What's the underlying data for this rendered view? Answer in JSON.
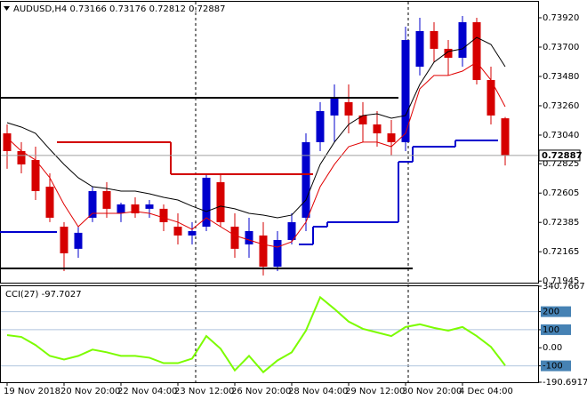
{
  "chart_data": [
    {
      "type": "candlestick",
      "title": "AUDUSD,H4",
      "categories": [
        "19 Nov 2018",
        null,
        null,
        null,
        "20 Nov 20:00",
        null,
        null,
        null,
        "22 Nov 04:00",
        null,
        null,
        null,
        "23 Nov 12:00",
        null,
        null,
        null,
        "26 Nov 20:00",
        null,
        null,
        null,
        "28 Nov 04:00",
        null,
        null,
        null,
        "29 Nov 12:00",
        null,
        null,
        null,
        "30 Nov 20:00",
        null,
        null,
        null,
        "4 Dec 04:00",
        null,
        null,
        null
      ],
      "open": [
        0.73053,
        0.7292,
        0.72853,
        0.72653,
        0.72353,
        0.72187,
        0.7242,
        0.7262,
        0.72453,
        0.7252,
        0.72487,
        0.72487,
        0.72353,
        0.72287,
        0.72353,
        0.72687,
        0.72353,
        0.7222,
        0.72287,
        0.72053,
        0.72253,
        0.7242,
        0.72987,
        0.73187,
        0.73287,
        0.73187,
        0.7312,
        0.73053,
        0.72987,
        0.73553,
        0.7382,
        0.73687,
        0.7362,
        0.73887,
        0.73453,
        0.73166
      ],
      "high": [
        0.7312,
        0.72987,
        0.72953,
        0.72753,
        0.72387,
        0.72353,
        0.72653,
        0.72687,
        0.72533,
        0.72573,
        0.72553,
        0.7252,
        0.72453,
        0.72387,
        0.72753,
        0.72753,
        0.72453,
        0.7242,
        0.72387,
        0.7232,
        0.72453,
        0.73053,
        0.73287,
        0.7342,
        0.7342,
        0.73287,
        0.7322,
        0.73153,
        0.73853,
        0.7392,
        0.73887,
        0.73753,
        0.73933,
        0.7392,
        0.73553,
        0.73176
      ],
      "low": [
        0.72787,
        0.72753,
        0.72553,
        0.72387,
        0.7202,
        0.7212,
        0.72387,
        0.7242,
        0.72387,
        0.7242,
        0.7242,
        0.7232,
        0.7222,
        0.7222,
        0.7232,
        0.72353,
        0.7212,
        0.7212,
        0.71987,
        0.7202,
        0.7222,
        0.7232,
        0.7292,
        0.72987,
        0.73053,
        0.72987,
        0.72953,
        0.72887,
        0.7292,
        0.73487,
        0.73587,
        0.73487,
        0.73553,
        0.7342,
        0.7312,
        0.72812
      ],
      "close": [
        0.7292,
        0.7282,
        0.7262,
        0.7242,
        0.72153,
        0.72307,
        0.7262,
        0.72487,
        0.7252,
        0.72453,
        0.7252,
        0.72387,
        0.72287,
        0.7232,
        0.7272,
        0.72387,
        0.72187,
        0.7232,
        0.72053,
        0.72253,
        0.72387,
        0.72987,
        0.7322,
        0.7332,
        0.73187,
        0.7312,
        0.73053,
        0.72987,
        0.73753,
        0.7382,
        0.73687,
        0.7362,
        0.73887,
        0.73453,
        0.73187,
        0.72887
      ],
      "up_color": "#0000cd",
      "down_color": "#d60000",
      "series": [
        {
          "color": "#000000",
          "width": 1,
          "step": false,
          "values": [
            0.73133,
            0.731,
            0.73053,
            0.72933,
            0.7282,
            0.7272,
            0.72653,
            0.7264,
            0.7262,
            0.7262,
            0.726,
            0.72573,
            0.72553,
            0.72507,
            0.72467,
            0.72507,
            0.72487,
            0.72453,
            0.7244,
            0.7242,
            0.7244,
            0.72553,
            0.7282,
            0.72987,
            0.7312,
            0.73187,
            0.732,
            0.73167,
            0.73187,
            0.7342,
            0.73587,
            0.73667,
            0.73687,
            0.73773,
            0.7372,
            0.73553
          ]
        },
        {
          "color": "#e00000",
          "width": 1,
          "step": false,
          "values": [
            0.7302,
            0.7292,
            0.72853,
            0.7272,
            0.7252,
            0.72353,
            0.72453,
            0.72453,
            0.72453,
            0.72467,
            0.72453,
            0.7242,
            0.72387,
            0.72333,
            0.7242,
            0.72353,
            0.72287,
            0.72253,
            0.7222,
            0.722,
            0.7224,
            0.72387,
            0.72653,
            0.7282,
            0.72953,
            0.72987,
            0.72987,
            0.72953,
            0.73053,
            0.73387,
            0.73487,
            0.73487,
            0.7352,
            0.73587,
            0.73453,
            0.73253
          ]
        },
        {
          "color": "#0000cd",
          "width": 2,
          "step": true,
          "values": [
            0.72313,
            0.72313,
            0.72313,
            0.72313,
            null,
            null,
            null,
            null,
            null,
            null,
            null,
            null,
            null,
            null,
            null,
            null,
            null,
            null,
            null,
            null,
            null,
            0.7222,
            0.72353,
            0.72387,
            0.72387,
            0.72387,
            0.72387,
            0.72387,
            0.7284,
            0.72953,
            0.72953,
            0.72953,
            0.73,
            0.73,
            0.73,
            null
          ]
        },
        {
          "color": "#d00000",
          "width": 2,
          "step": true,
          "values": [
            null,
            null,
            null,
            null,
            0.72987,
            0.72987,
            0.72987,
            0.72987,
            0.72987,
            0.72987,
            0.72987,
            0.72987,
            0.72747,
            0.72747,
            0.72747,
            0.72747,
            0.72747,
            0.72747,
            0.72747,
            0.72747,
            0.72747,
            0.72747,
            null,
            null,
            null,
            null,
            null,
            null,
            null,
            null,
            null,
            null,
            null,
            null,
            null,
            null
          ]
        },
        {
          "color": "#000000",
          "width": 2,
          "step": true,
          "values": [
            0.7332,
            0.7332,
            0.7332,
            0.7332,
            0.7332,
            0.7332,
            0.7332,
            0.7332,
            0.7332,
            0.7332,
            0.7332,
            0.7332,
            0.7332,
            0.7332,
            0.7332,
            0.7332,
            0.7332,
            0.7332,
            0.7332,
            0.7332,
            0.7332,
            0.7332,
            0.7332,
            0.7332,
            0.7332,
            0.7332,
            0.7332,
            0.7332,
            null,
            null,
            null,
            null,
            null,
            null,
            null,
            null
          ]
        },
        {
          "color": "#000000",
          "width": 2,
          "step": true,
          "values": [
            0.7204,
            0.7204,
            0.7204,
            0.7204,
            0.7204,
            0.7204,
            0.7204,
            0.7204,
            0.7204,
            0.7204,
            0.7204,
            0.7204,
            0.7204,
            0.7204,
            0.7204,
            0.7204,
            0.7204,
            0.7204,
            0.7204,
            0.7204,
            0.7204,
            0.7204,
            0.7204,
            0.7204,
            0.7204,
            0.7204,
            0.7204,
            0.7204,
            0.7204,
            null,
            null,
            null,
            null,
            null,
            null,
            null
          ]
        }
      ],
      "ylim": [
        0.71933,
        0.7404
      ],
      "yticks": [
        {
          "value": 0.7392,
          "label": "0.73920"
        },
        {
          "value": 0.737,
          "label": "0.73700"
        },
        {
          "value": 0.7348,
          "label": "0.73480"
        },
        {
          "value": 0.7326,
          "label": "0.73260"
        },
        {
          "value": 0.7304,
          "label": "0.73040"
        },
        0.72825,
        0.72605,
        0.72385,
        0.72165,
        0.71945
      ]
    },
    {
      "type": "line",
      "title": "CCI(27)",
      "series": [
        {
          "color": "#7cfc00",
          "width": 2,
          "values": [
            70,
            60,
            15,
            -45,
            -65,
            -45,
            -10,
            -25,
            -45,
            -45,
            -55,
            -85,
            -85,
            -60,
            65,
            -5,
            -125,
            -45,
            -135,
            -70,
            -25,
            95,
            280,
            215,
            145,
            105,
            85,
            65,
            115,
            130,
            110,
            95,
            115,
            65,
            5,
            -97.7027
          ]
        }
      ],
      "ylim": [
        -190.6917,
        340.7667
      ],
      "yticks": [
        340.7667,
        200,
        100,
        {
          "value": 0,
          "label": "0.00"
        },
        -100,
        -190.6917
      ],
      "levels": [
        200,
        100,
        -100
      ],
      "level_color": "#4682b4"
    }
  ]
}
